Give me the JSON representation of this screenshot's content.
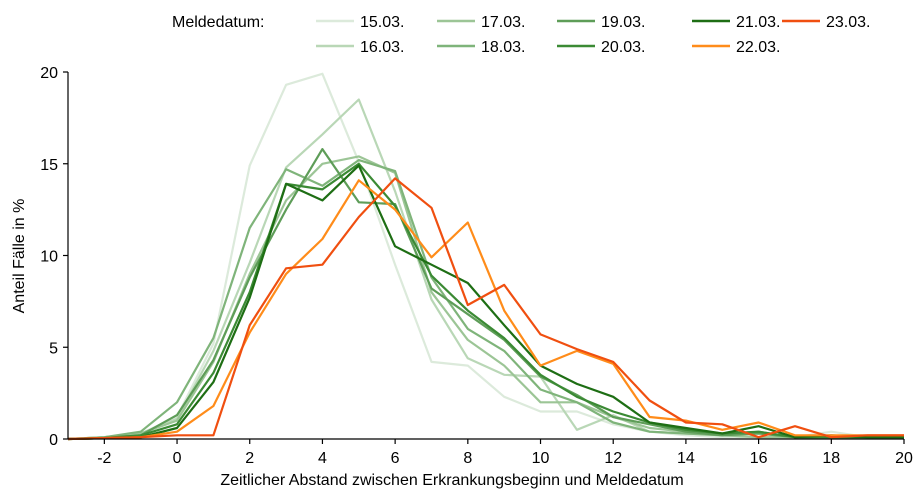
{
  "chart_data": {
    "type": "line",
    "title": "",
    "xlabel": "Zeitlicher Abstand zwischen Erkrankungsbeginn und Meldedatum",
    "ylabel": "Anteil Fälle in %",
    "xlim": [
      -3,
      20
    ],
    "ylim": [
      0,
      20
    ],
    "xticks": [
      -2,
      0,
      2,
      4,
      6,
      8,
      10,
      12,
      14,
      16,
      18,
      20
    ],
    "yticks": [
      0,
      5,
      10,
      15,
      20
    ],
    "grid": false,
    "legend": {
      "title": "Meldedatum:",
      "placement": "top"
    },
    "x": [
      -3,
      -2,
      -1,
      0,
      1,
      2,
      3,
      4,
      5,
      6,
      7,
      8,
      9,
      10,
      11,
      12,
      13,
      14,
      15,
      16,
      17,
      18,
      19,
      20
    ],
    "series": [
      {
        "name": "15.03.",
        "color": "#dceadb",
        "values": [
          0,
          0.1,
          0.3,
          1.2,
          5.2,
          14.9,
          19.3,
          19.9,
          15.1,
          9.5,
          4.2,
          4.0,
          2.3,
          1.5,
          1.5,
          0.8,
          0.4,
          0.2,
          0.1,
          0.1,
          0.1,
          0.4,
          0.1,
          0.1
        ]
      },
      {
        "name": "16.03.",
        "color": "#b9d7b6",
        "values": [
          0,
          0.1,
          0.3,
          1.1,
          4.8,
          9.6,
          14.8,
          16.6,
          18.5,
          13.5,
          7.6,
          4.4,
          3.5,
          3.4,
          0.5,
          1.3,
          0.4,
          0.3,
          0.2,
          0.1,
          0.1,
          0.1,
          0.1,
          0.1
        ]
      },
      {
        "name": "17.03.",
        "color": "#9cc596",
        "values": [
          0,
          0.1,
          0.3,
          1.0,
          4.2,
          9.0,
          13.0,
          15.0,
          15.4,
          14.5,
          8.0,
          5.4,
          4.0,
          2.0,
          2.0,
          1.2,
          0.6,
          0.4,
          0.2,
          0.1,
          0.1,
          0.1,
          0.1,
          0.1
        ]
      },
      {
        "name": "18.03.",
        "color": "#7fb47a",
        "values": [
          0,
          0.1,
          0.4,
          2.0,
          5.5,
          11.5,
          14.7,
          13.8,
          15.2,
          14.6,
          8.8,
          6.0,
          4.8,
          2.7,
          2.0,
          0.9,
          0.4,
          0.3,
          0.2,
          0.4,
          0.1,
          0.1,
          0.1,
          0.1
        ]
      },
      {
        "name": "19.03.",
        "color": "#5e9d58",
        "values": [
          0,
          0.05,
          0.2,
          1.3,
          4.3,
          8.8,
          12.5,
          15.8,
          12.9,
          12.8,
          8.2,
          6.8,
          5.4,
          3.4,
          2.4,
          1.2,
          0.8,
          0.4,
          0.2,
          0.3,
          0.1,
          0.1,
          0.1,
          0.1
        ]
      },
      {
        "name": "20.03.",
        "color": "#3b8a34",
        "values": [
          0,
          0.05,
          0.2,
          0.8,
          3.6,
          8.0,
          13.9,
          13.6,
          15.0,
          12.7,
          8.9,
          7.0,
          5.5,
          3.5,
          2.3,
          1.5,
          0.9,
          0.5,
          0.3,
          0.4,
          0.1,
          0.1,
          0.1,
          0.1
        ]
      },
      {
        "name": "21.03.",
        "color": "#1e6e14",
        "values": [
          0,
          0.05,
          0.1,
          0.6,
          3.1,
          7.7,
          13.9,
          13.0,
          14.9,
          10.5,
          9.5,
          8.5,
          6.2,
          4.0,
          3.0,
          2.3,
          0.9,
          0.6,
          0.3,
          0.7,
          0.1,
          0.2,
          0.1,
          0.1
        ]
      },
      {
        "name": "22.03.",
        "color": "#ff8c1a",
        "values": [
          0,
          0.05,
          0.1,
          0.4,
          1.8,
          5.8,
          9.0,
          10.9,
          14.1,
          12.5,
          9.9,
          11.8,
          7.0,
          4.0,
          4.8,
          4.1,
          1.2,
          1.0,
          0.5,
          0.9,
          0.2,
          0.2,
          0.2,
          0.2
        ]
      },
      {
        "name": "23.03.",
        "color": "#f04f10",
        "values": [
          0,
          0.05,
          0.1,
          0.2,
          0.2,
          6.2,
          9.3,
          9.5,
          12.1,
          14.2,
          12.6,
          7.3,
          8.4,
          5.7,
          4.9,
          4.2,
          2.1,
          0.9,
          0.8,
          0.1,
          0.7,
          0.1,
          0.2,
          0.2
        ]
      }
    ]
  }
}
